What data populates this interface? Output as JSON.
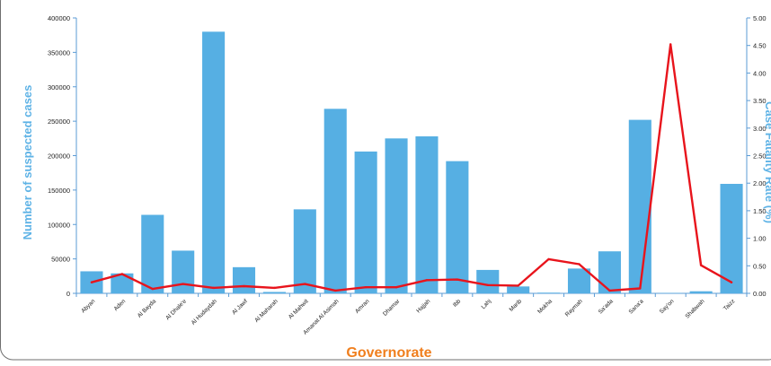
{
  "colors": {
    "bar": "#56afe3",
    "line": "#e8141c",
    "axis": "#5b9bd5",
    "x_title": "#f07f1e",
    "y_title": "#5fb3e6"
  },
  "chart_data": {
    "type": "bar",
    "xlabel": "Governorate",
    "ylabel": "Number of suspected cases",
    "y2label": "Case Fatality Rate (%)",
    "ylim": [
      0,
      400000
    ],
    "y2lim": [
      0,
      5
    ],
    "yticks": [
      "0",
      "50000",
      "100000",
      "150000",
      "200000",
      "250000",
      "300000",
      "350000",
      "400000"
    ],
    "y2ticks": [
      "0.00",
      "0.50",
      "1.00",
      "1.50",
      "2.00",
      "2.50",
      "3.00",
      "3.50",
      "4.00",
      "4.50",
      "5.00"
    ],
    "grid": false,
    "categories": [
      "Abyan",
      "Aden",
      "Al Bayda",
      "Al Dhale'e",
      "Al Hudaydah",
      "Al Jawf",
      "Al Maharah",
      "Al Mahwit",
      "Amanat Al Asimah",
      "Amran",
      "Dhamar",
      "Hajjah",
      "Ibb",
      "Lahj",
      "Marib",
      "Mokha",
      "Raymah",
      "Sa'ada",
      "Sana'a",
      "Say'on",
      "Shabwah",
      "Taizz"
    ],
    "series": [
      {
        "type": "bar",
        "axis": "left",
        "values": [
          32000,
          29000,
          114000,
          62000,
          380000,
          38000,
          2000,
          122000,
          268000,
          206000,
          225000,
          228000,
          192000,
          34000,
          10000,
          1000,
          36000,
          61000,
          252000,
          500,
          3000,
          159000
        ]
      },
      {
        "type": "line",
        "axis": "right",
        "values": [
          0.2,
          0.35,
          0.08,
          0.17,
          0.1,
          0.13,
          0.1,
          0.17,
          0.05,
          0.11,
          0.11,
          0.24,
          0.25,
          0.15,
          0.14,
          0.62,
          0.53,
          0.05,
          0.09,
          4.52,
          0.51,
          0.2
        ]
      }
    ]
  }
}
